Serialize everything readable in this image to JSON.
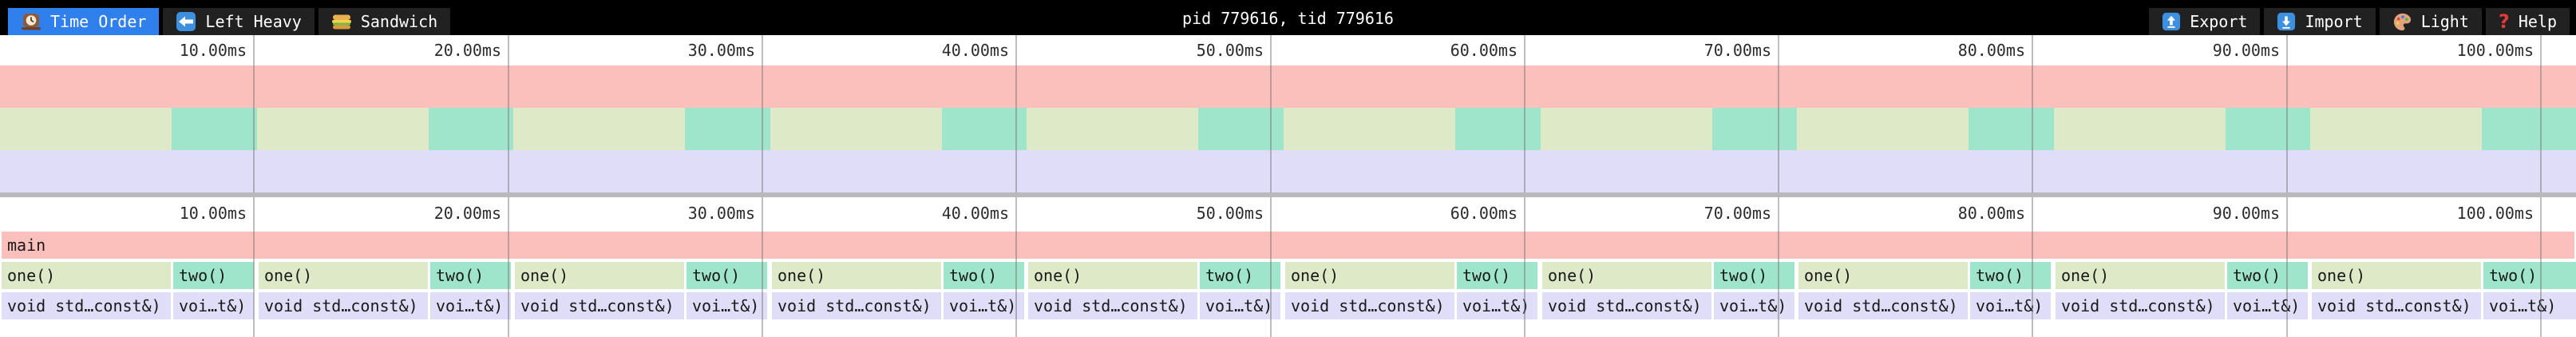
{
  "topbar": {
    "tabs": [
      {
        "id": "time-order",
        "label": "Time Order",
        "icon": "clock-icon",
        "selected": true
      },
      {
        "id": "left-heavy",
        "label": "Left Heavy",
        "icon": "left-arrow-icon",
        "selected": false
      },
      {
        "id": "sandwich",
        "label": "Sandwich",
        "icon": "sandwich-icon",
        "selected": false
      }
    ],
    "title": "pid 779616, tid 779616",
    "actions": [
      {
        "id": "export",
        "label": "Export",
        "icon": "export-icon"
      },
      {
        "id": "import",
        "label": "Import",
        "icon": "import-icon"
      },
      {
        "id": "theme",
        "label": "Light",
        "icon": "palette-icon"
      },
      {
        "id": "help",
        "label": "Help",
        "icon": "help-icon"
      }
    ]
  },
  "time_ruler": {
    "tick_labels": [
      "10.00ms",
      "20.00ms",
      "30.00ms",
      "40.00ms",
      "50.00ms",
      "60.00ms",
      "70.00ms",
      "80.00ms",
      "90.00ms",
      "100.00ms"
    ]
  },
  "flamegraph": {
    "root_frame": "main",
    "cycle_frames": [
      {
        "name": "one()",
        "child": "void std…const&)"
      },
      {
        "name": "two()",
        "child": "voi…t&)"
      }
    ],
    "cycles": 10,
    "colors": {
      "main": "#fbbfbc",
      "one": "#dee9c8",
      "two": "#9ee5cb",
      "child": "#dfddf8",
      "gridline": "rgba(110,110,110,0.45)",
      "divider": "#b9b9b9",
      "selected_tab": "#2f80ed",
      "toolbar_bg": "#000000",
      "tab_bg": "#212121"
    }
  }
}
